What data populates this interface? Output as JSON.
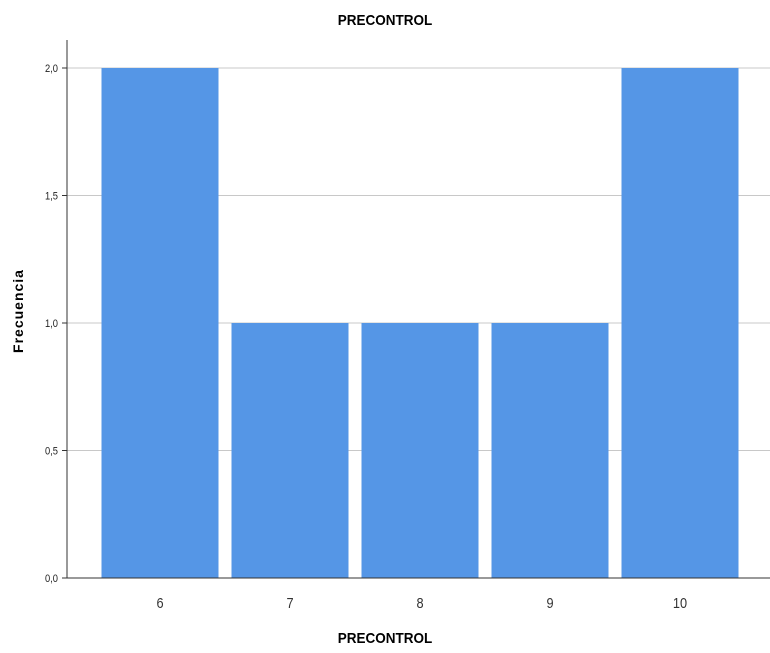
{
  "chart_data": {
    "type": "bar",
    "title": "PRECONTROL",
    "xlabel": "PRECONTROL",
    "ylabel": "Frecuencia",
    "categories": [
      "6",
      "7",
      "8",
      "9",
      "10"
    ],
    "values": [
      2,
      1,
      1,
      1,
      2
    ],
    "ylim": [
      0,
      2
    ],
    "yticks": [
      "0,0",
      "0,5",
      "1,0",
      "1,5",
      "2,0"
    ],
    "ytick_values": [
      0,
      0.5,
      1,
      1.5,
      2
    ],
    "grid": true,
    "bar_color": "#5596e6",
    "grid_color": "#c8c8c8",
    "axis_color": "#333333"
  }
}
